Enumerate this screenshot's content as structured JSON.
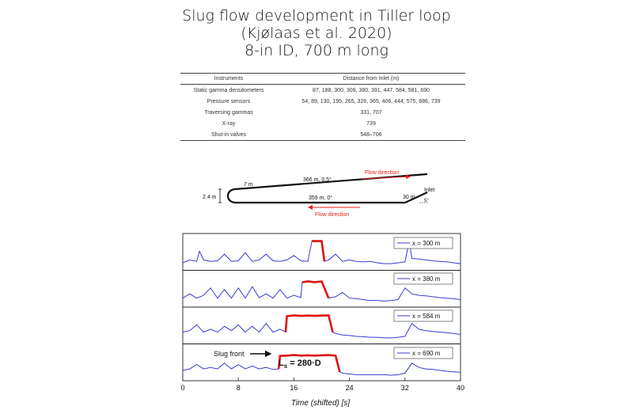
{
  "title": {
    "line1": "Slug flow development in Tiller loop",
    "line2": "(Kjølaas et al. 2020)",
    "line3": "8-in ID, 700 m long"
  },
  "table": {
    "headers": [
      "Instruments",
      "Distance from Inlet (m)"
    ],
    "rows": [
      [
        "Static gamma densitometers",
        "87, 188, 300, 309, 380, 391, 447, 584, 581, 690"
      ],
      [
        "Pressure sensors",
        "54, 89, 130, 195, 265, 326, 365, 406, 444, 575, 686, 739"
      ],
      [
        "Traversing gammas",
        "331, 707"
      ],
      [
        "X-ray",
        "739"
      ],
      [
        "Shut-in valves",
        "548–706"
      ]
    ]
  },
  "loop": {
    "upper_left": "7 m",
    "upper_pipe": "366 m, 0.5°",
    "lower_pipe": "359 m, 0°",
    "height": "2.4 m",
    "riser": "30 m",
    "riser_angle": "5°",
    "inlet": "Inlet",
    "flow_upper": "Flow direction",
    "flow_lower": "Flow direction",
    "line_color": "#111111",
    "arrow_color": "#e0201b"
  },
  "plot": {
    "xlabel": "Time (shifted) [s]",
    "xticks": [
      0,
      8,
      16,
      24,
      32,
      40
    ],
    "slug_front_label": "Slug front",
    "ls_label": "L",
    "ls_sub": "s",
    "ls_value": " = 280·D",
    "series_color": "#3a3ad6",
    "slug_color": "#e0120e"
  },
  "chart_data": {
    "type": "line",
    "xlabel": "Time (shifted) [s]",
    "xlim": [
      0,
      40
    ],
    "xticks": [
      0,
      8,
      16,
      24,
      32,
      40
    ],
    "series": [
      {
        "name": "x = 300 m",
        "x": [
          0,
          1,
          2,
          2.4,
          3,
          4,
          5,
          6,
          7,
          8,
          9,
          10,
          11,
          12,
          13,
          14,
          15,
          16,
          17,
          18,
          18.6,
          19,
          20,
          20.4,
          21,
          22,
          23,
          24,
          25,
          26,
          27,
          28,
          29,
          30,
          31,
          32,
          32.6,
          33,
          34,
          35,
          36,
          37,
          38,
          39,
          40
        ],
        "y": [
          0.15,
          0.25,
          0.2,
          0.55,
          0.25,
          0.2,
          0.22,
          0.45,
          0.2,
          0.22,
          0.5,
          0.2,
          0.25,
          0.45,
          0.22,
          0.2,
          0.25,
          0.4,
          0.22,
          0.2,
          0.9,
          0.9,
          0.9,
          0.2,
          0.25,
          0.45,
          0.2,
          0.25,
          0.2,
          0.18,
          0.2,
          0.15,
          0.12,
          0.12,
          0.15,
          0.18,
          0.9,
          0.3,
          0.28,
          0.25,
          0.22,
          0.2,
          0.18,
          0.15,
          0.12
        ]
      },
      {
        "name": "x = 380 m",
        "x": [
          0,
          1,
          2,
          3,
          4,
          5,
          6,
          7,
          8,
          9,
          10,
          11,
          12,
          13,
          14,
          15,
          16,
          17,
          17.2,
          18,
          19,
          20,
          21,
          22,
          23,
          24,
          25,
          26,
          27,
          28,
          29,
          30,
          31,
          32,
          33,
          34,
          35,
          36,
          37,
          38,
          39,
          40
        ],
        "y": [
          0.2,
          0.35,
          0.2,
          0.3,
          0.55,
          0.2,
          0.5,
          0.2,
          0.55,
          0.2,
          0.6,
          0.22,
          0.35,
          0.2,
          0.5,
          0.2,
          0.3,
          0.22,
          0.75,
          0.78,
          0.75,
          0.78,
          0.2,
          0.25,
          0.4,
          0.2,
          0.18,
          0.15,
          0.12,
          0.12,
          0.1,
          0.12,
          0.15,
          0.55,
          0.35,
          0.3,
          0.28,
          0.25,
          0.22,
          0.2,
          0.18,
          0.15
        ]
      },
      {
        "name": "x = 584 m",
        "x": [
          0,
          1,
          2,
          3,
          4,
          5,
          6,
          7,
          8,
          9,
          10,
          11,
          12,
          13,
          14,
          14.8,
          15,
          16,
          17,
          18,
          19,
          20,
          21,
          21.6,
          22,
          23,
          24,
          25,
          26,
          27,
          28,
          29,
          30,
          31,
          32,
          33,
          34,
          35,
          36,
          37,
          38,
          39,
          40
        ],
        "y": [
          0.3,
          0.35,
          0.55,
          0.3,
          0.4,
          0.3,
          0.5,
          0.35,
          0.55,
          0.3,
          0.5,
          0.3,
          0.6,
          0.3,
          0.4,
          0.3,
          0.85,
          0.88,
          0.86,
          0.87,
          0.86,
          0.87,
          0.88,
          0.3,
          0.25,
          0.2,
          0.18,
          0.15,
          0.14,
          0.12,
          0.12,
          0.1,
          0.1,
          0.12,
          0.15,
          0.6,
          0.4,
          0.35,
          0.32,
          0.3,
          0.28,
          0.25,
          0.22
        ]
      },
      {
        "name": "x = 690 m",
        "x": [
          0,
          1,
          2,
          3,
          4,
          5,
          6,
          7,
          8,
          9,
          10,
          11,
          12,
          13,
          13.8,
          14,
          15,
          16,
          17,
          18,
          19,
          20,
          21,
          22,
          22.6,
          23,
          24,
          25,
          26,
          27,
          28,
          29,
          30,
          31,
          32,
          33,
          34,
          35,
          36,
          37,
          38,
          39,
          40
        ],
        "y": [
          0.25,
          0.3,
          0.45,
          0.3,
          0.35,
          0.3,
          0.5,
          0.3,
          0.45,
          0.3,
          0.4,
          0.3,
          0.35,
          0.28,
          0.3,
          0.75,
          0.76,
          0.78,
          0.76,
          0.77,
          0.76,
          0.77,
          0.78,
          0.76,
          0.2,
          0.15,
          0.12,
          0.1,
          0.1,
          0.1,
          0.1,
          0.1,
          0.08,
          0.1,
          0.15,
          0.5,
          0.35,
          0.3,
          0.28,
          0.25,
          0.22,
          0.2,
          0.18
        ]
      }
    ],
    "slug_segments": [
      {
        "series": "x = 300 m",
        "x_start": 18.6,
        "x_end": 20.4
      },
      {
        "series": "x = 380 m",
        "x_start": 17.2,
        "x_end": 21
      },
      {
        "series": "x = 584 m",
        "x_start": 14.8,
        "x_end": 21.6
      },
      {
        "series": "x = 690 m",
        "x_start": 13.8,
        "x_end": 22.6
      }
    ]
  }
}
